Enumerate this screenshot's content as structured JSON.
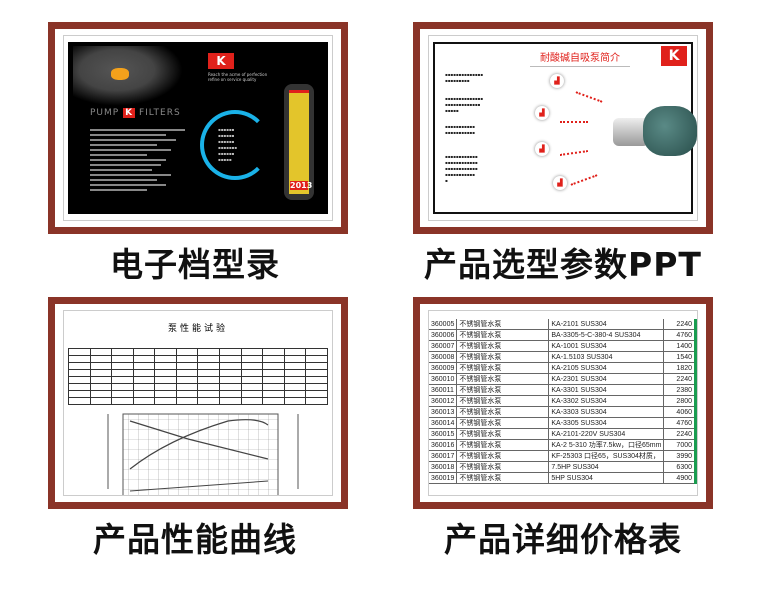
{
  "frame_color": "#8a3428",
  "panels": {
    "catalog": {
      "caption": "电子档型录",
      "brand_left": "PUMP",
      "brand_k": "K",
      "brand_right": "FILTERS",
      "slogan": "Reach the acme of perfection refine on service quality",
      "year": "2013"
    },
    "ppt": {
      "caption": "产品选型参数PPT",
      "slide_title": "耐酸碱自吸泵简介",
      "logo": "K"
    },
    "curve": {
      "caption": "产品性能曲线",
      "doc_title": "泵性能试验"
    },
    "price": {
      "caption": "产品详细价格表",
      "rows": [
        [
          "360005",
          "不锈钢管水泵",
          "KA-2101 SUS304",
          "2240"
        ],
        [
          "360006",
          "不锈钢管水泵",
          "BA-3305-5-C-380-4 SUS304",
          "4760"
        ],
        [
          "360007",
          "不锈钢管水泵",
          "KA-1001 SUS304",
          "1400"
        ],
        [
          "360008",
          "不锈钢管水泵",
          "KA-1.5103 SUS304",
          "1540"
        ],
        [
          "360009",
          "不锈钢管水泵",
          "KA-2105 SUS304",
          "1820"
        ],
        [
          "360010",
          "不锈钢管水泵",
          "KA-2301 SUS304",
          "2240"
        ],
        [
          "360011",
          "不锈钢管水泵",
          "KA-3301 SUS304",
          "2380"
        ],
        [
          "360012",
          "不锈钢管水泵",
          "KA-3302 SUS304",
          "2800"
        ],
        [
          "360013",
          "不锈钢管水泵",
          "KA-3303 SUS304",
          "4060"
        ],
        [
          "360014",
          "不锈钢管水泵",
          "KA-3305 SUS304",
          "4760"
        ],
        [
          "360015",
          "不锈钢管水泵",
          "KA-2101-220V SUS304",
          "2240"
        ],
        [
          "360016",
          "不锈钢管水泵",
          "KA-2 5-310  功率7.5kw，口径65mm",
          "7000"
        ],
        [
          "360017",
          "不锈钢管水泵",
          "KF-25303  口径65，SUS304材质，",
          "3990"
        ],
        [
          "360018",
          "不锈钢管水泵",
          "7.5HP  SUS304",
          "6300"
        ],
        [
          "360019",
          "不锈钢管水泵",
          "5HP SUS304",
          "4900"
        ]
      ]
    }
  }
}
